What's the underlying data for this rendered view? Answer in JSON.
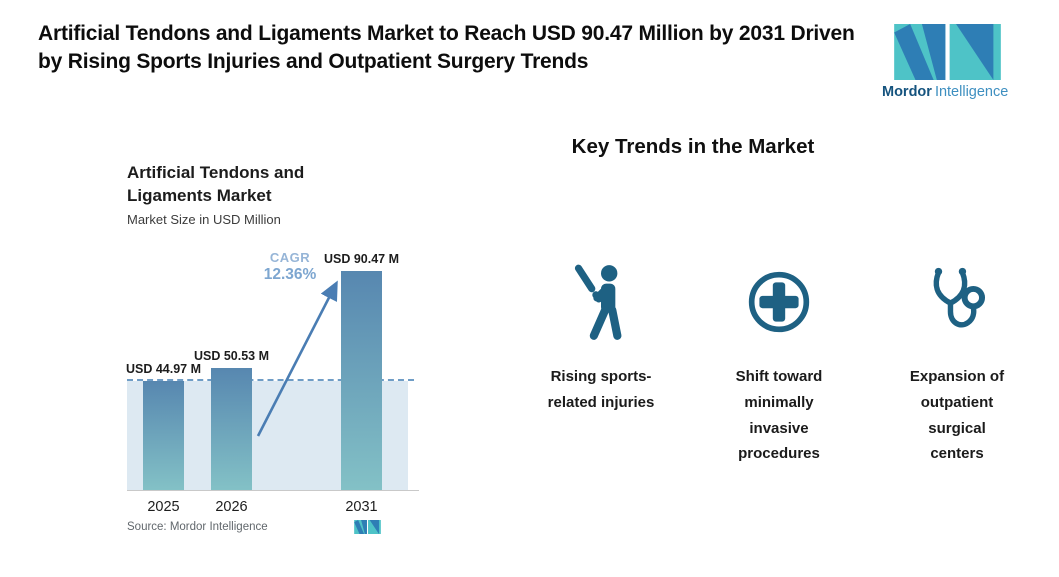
{
  "header": {
    "title": "Artificial Tendons and Ligaments Market to Reach USD 90.47 Million by 2031 Driven by Rising Sports Injuries and Outpatient Surgery Trends"
  },
  "brand": {
    "logo_icon": "mordor-intelligence-monogram",
    "word_primary": "Mordor",
    "word_secondary": "Intelligence"
  },
  "chart": {
    "title": "Artificial Tendons and Ligaments Market",
    "subtitle": "Market Size in USD Million",
    "source": "Source: Mordor Intelligence"
  },
  "chart_data": {
    "type": "bar",
    "title": "Artificial Tendons and Ligaments Market",
    "subtitle": "Market Size in USD Million",
    "categories": [
      "2025",
      "2026",
      "2031"
    ],
    "values": [
      44.97,
      50.53,
      90.47
    ],
    "bar_labels": [
      "USD 44.97 M",
      "USD 50.53 M",
      "USD 90.47 M"
    ],
    "unit": "USD Million",
    "cagr": {
      "label": "CAGR",
      "value": "12.36%"
    },
    "baseline_dash_value": 44.97,
    "ylim": [
      0,
      95
    ],
    "grid": false,
    "legend": "none",
    "annotations": [
      "growth arrow from 2026 bar to 2031 bar",
      "dashed reference line at 2025 level with shaded area below"
    ]
  },
  "trends": {
    "heading": "Key Trends in the Market",
    "items": [
      {
        "icon": "baseball-player-icon",
        "label": "Rising sports-\nrelated injuries"
      },
      {
        "icon": "medical-cross-icon",
        "label": "Shift toward\nminimally\ninvasive\nprocedures"
      },
      {
        "icon": "stethoscope-icon",
        "label": "Expansion of\noutpatient\nsurgical\ncenters"
      }
    ]
  },
  "colors": {
    "icon_accent": "#1e6183",
    "bar_top": "#5787b0",
    "bar_bottom": "#83c1c6",
    "area": "#dde9f2",
    "dashed": "#6f9dc6",
    "arrow": "#4a7db3",
    "cagr_label": "#96b5d7",
    "cagr_value": "#7da6d0",
    "brand_teal": "#4ec3c7",
    "brand_blue": "#2e7eb5",
    "brand_navy": "#15537e",
    "brand_lightblue": "#3e8fc0"
  }
}
